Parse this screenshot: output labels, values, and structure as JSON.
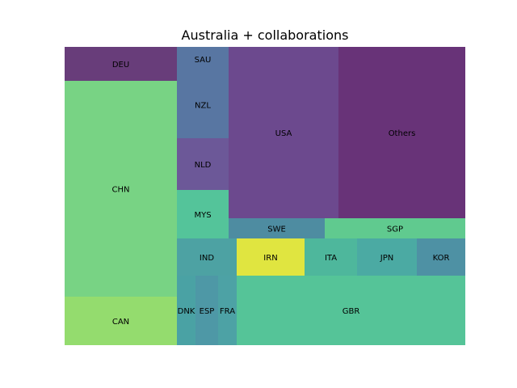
{
  "chart_data": {
    "type": "treemap",
    "title": "Australia + collaborations",
    "tiles": [
      {
        "label": "DEU",
        "color": "#5b2c6f"
      },
      {
        "label": "CHN",
        "color": "#6ccf79"
      },
      {
        "label": "CAN",
        "color": "#8bd962"
      },
      {
        "label": "SAU",
        "color": "#4a6a9a"
      },
      {
        "label": "NZL",
        "color": "#4a6a9a"
      },
      {
        "label": "NLD",
        "color": "#5f4a8f"
      },
      {
        "label": "MYS",
        "color": "#45bf91"
      },
      {
        "label": "USA",
        "color": "#5f3a84"
      },
      {
        "label": "Others",
        "color": "#5b226c"
      },
      {
        "label": "SWE",
        "color": "#3f8299"
      },
      {
        "label": "SGP",
        "color": "#53c586"
      },
      {
        "label": "IND",
        "color": "#3e9a9b"
      },
      {
        "label": "IRN",
        "color": "#dde330"
      },
      {
        "label": "ITA",
        "color": "#3fb194"
      },
      {
        "label": "JPN",
        "color": "#3ca39b"
      },
      {
        "label": "KOR",
        "color": "#3f889c"
      },
      {
        "label": "DNK",
        "color": "#3b9a9c"
      },
      {
        "label": "ESP",
        "color": "#3f8f9e"
      },
      {
        "label": "FRA",
        "color": "#3e9a9d"
      },
      {
        "label": "GBR",
        "color": "#47bf8f"
      }
    ]
  }
}
